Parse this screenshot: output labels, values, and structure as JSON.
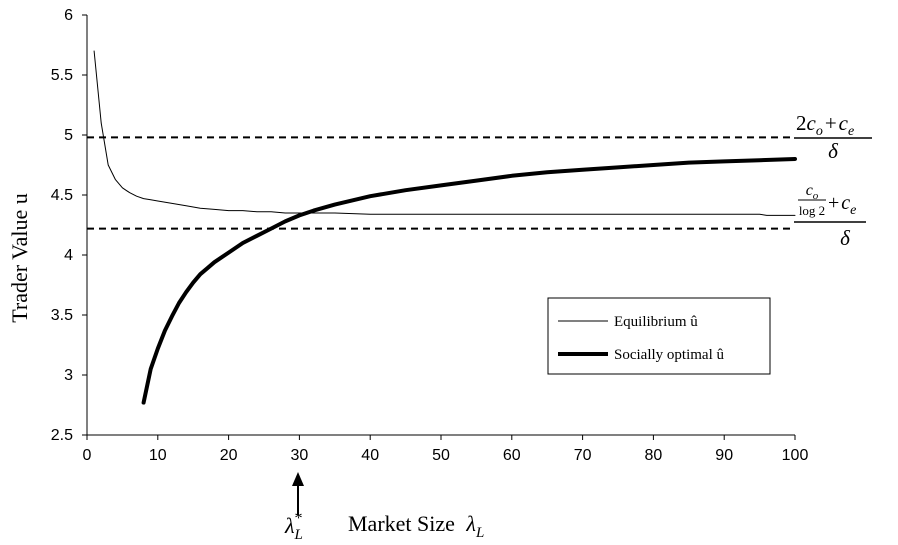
{
  "chart_data": {
    "type": "line",
    "xlabel": "Market Size",
    "xlabel_symbol": "λ",
    "xlabel_subscript": "L",
    "ylabel": "Trader Value u",
    "xlim": [
      0,
      100
    ],
    "ylim": [
      2.5,
      6
    ],
    "x_ticks": [
      "0",
      "10",
      "20",
      "30",
      "40",
      "50",
      "60",
      "70",
      "80",
      "90",
      "100"
    ],
    "y_ticks": [
      "2.5",
      "3",
      "3.5",
      "4",
      "4.5",
      "5",
      "5.5",
      "6"
    ],
    "grid": false,
    "legend_position": "right",
    "series": [
      {
        "name": "Equilibrium û",
        "style": "thin",
        "x": [
          1,
          2,
          3,
          4,
          5,
          6,
          7,
          8,
          9,
          10,
          12,
          14,
          16,
          18,
          20,
          22,
          24,
          26,
          28,
          30,
          35,
          40,
          45,
          50,
          60,
          70,
          80,
          90,
          95,
          96,
          100
        ],
        "y": [
          5.7,
          5.1,
          4.75,
          4.63,
          4.56,
          4.52,
          4.49,
          4.47,
          4.46,
          4.45,
          4.43,
          4.41,
          4.39,
          4.38,
          4.37,
          4.37,
          4.36,
          4.36,
          4.35,
          4.35,
          4.35,
          4.34,
          4.34,
          4.34,
          4.34,
          4.34,
          4.34,
          4.34,
          4.34,
          4.33,
          4.33
        ]
      },
      {
        "name": "Socially optimal û",
        "style": "thick",
        "x": [
          8,
          9,
          10,
          11,
          12,
          13,
          14,
          15,
          16,
          17,
          18,
          20,
          22,
          24,
          26,
          28,
          30,
          32,
          35,
          40,
          45,
          50,
          55,
          60,
          65,
          70,
          75,
          80,
          85,
          90,
          95,
          100
        ],
        "y": [
          2.77,
          3.05,
          3.22,
          3.37,
          3.49,
          3.6,
          3.69,
          3.77,
          3.84,
          3.89,
          3.94,
          4.02,
          4.1,
          4.16,
          4.22,
          4.28,
          4.33,
          4.37,
          4.42,
          4.49,
          4.54,
          4.58,
          4.62,
          4.66,
          4.69,
          4.71,
          4.73,
          4.75,
          4.77,
          4.78,
          4.79,
          4.8
        ]
      }
    ],
    "reference_lines": [
      {
        "y": 4.98,
        "style": "dashed"
      },
      {
        "y": 4.22,
        "style": "dashed"
      }
    ],
    "annotations": {
      "upper_formula": {
        "numerator_coeff": "2",
        "c": "c",
        "sub_o": "o",
        "plus": "+",
        "sub_e": "e",
        "denominator": "δ"
      },
      "lower_formula": {
        "c": "c",
        "sub_o": "o",
        "log_text": "log 2",
        "plus": "+",
        "sub_e": "e",
        "denominator": "δ"
      },
      "arrow": {
        "x": 30,
        "label_symbol": "λ",
        "label_sup": "*",
        "label_sub": "L"
      }
    }
  }
}
